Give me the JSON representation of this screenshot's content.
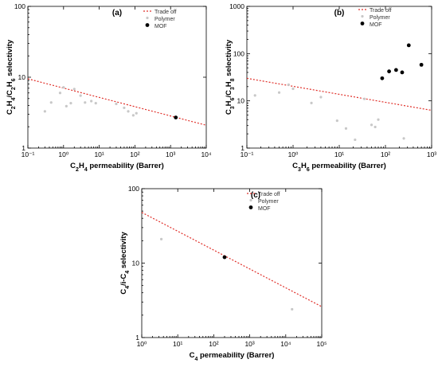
{
  "chart_data": [
    {
      "panel": "(a)",
      "type": "scatter",
      "xlabel_html": "C<sub>2</sub>H<sub>4</sub> permeability (Barrer)",
      "ylabel_html": "C<sub>2</sub>H<sub>4</sub>/C<sub>2</sub>H<sub>6</sub> selectivity",
      "xscale": "log",
      "yscale": "log",
      "xlim": [
        0.1,
        10000
      ],
      "ylim": [
        1,
        100
      ],
      "xticks": [
        "10⁻¹",
        "10⁰",
        "10¹",
        "10²",
        "10³",
        "10⁴"
      ],
      "yticks": [
        "1",
        "10",
        "100"
      ],
      "legend": {
        "position": "top-right",
        "entries": [
          "Trade off",
          "Polymer",
          "MOF"
        ]
      },
      "series": [
        {
          "name": "Trade off",
          "kind": "line",
          "color": "#e0302a",
          "points": [
            [
              0.1,
              9.5
            ],
            [
              10000,
              2.1
            ]
          ]
        },
        {
          "name": "Polymer",
          "kind": "scatter",
          "color": "#c8c8c8",
          "points": [
            [
              0.3,
              3.3
            ],
            [
              0.45,
              4.4
            ],
            [
              0.8,
              6.0
            ],
            [
              1.0,
              7.2
            ],
            [
              1.2,
              3.9
            ],
            [
              1.6,
              4.3
            ],
            [
              2.0,
              6.8
            ],
            [
              3.0,
              5.5
            ],
            [
              4.0,
              4.4
            ],
            [
              6.0,
              4.6
            ],
            [
              8.0,
              4.3
            ],
            [
              30,
              4.2
            ],
            [
              50,
              3.7
            ],
            [
              65,
              3.3
            ],
            [
              90,
              2.9
            ],
            [
              110,
              3.1
            ]
          ]
        },
        {
          "name": "MOF",
          "kind": "scatter",
          "color": "#000000",
          "points": [
            [
              1400,
              2.7
            ]
          ]
        }
      ]
    },
    {
      "panel": "(b)",
      "type": "scatter",
      "xlabel_html": "C<sub>3</sub>H<sub>6</sub> permeability (Barrer)",
      "ylabel_html": "C<sub>3</sub>H<sub>6</sub>/C<sub>3</sub>H<sub>8</sub> selectivity",
      "xscale": "log",
      "yscale": "log",
      "xlim": [
        0.1,
        1000
      ],
      "ylim": [
        1,
        1000
      ],
      "xticks": [
        "10⁻¹",
        "10⁰",
        "10¹",
        "10²",
        "10³"
      ],
      "yticks": [
        "1",
        "10",
        "100",
        "1000"
      ],
      "legend": {
        "position": "top-right",
        "entries": [
          "Trade off",
          "Polymer",
          "MOF"
        ]
      },
      "series": [
        {
          "name": "Trade off",
          "kind": "line",
          "color": "#e0302a",
          "points": [
            [
              0.1,
              30
            ],
            [
              1000,
              6.3
            ]
          ]
        },
        {
          "name": "Polymer",
          "kind": "scatter",
          "color": "#c8c8c8",
          "points": [
            [
              0.15,
              13
            ],
            [
              0.5,
              15
            ],
            [
              0.8,
              22
            ],
            [
              1.0,
              18
            ],
            [
              2.5,
              9
            ],
            [
              4.0,
              12
            ],
            [
              9.0,
              3.8
            ],
            [
              14,
              2.6
            ],
            [
              22,
              1.5
            ],
            [
              35,
              11
            ],
            [
              50,
              3.1
            ],
            [
              60,
              2.8
            ],
            [
              70,
              4.0
            ],
            [
              250,
              1.6
            ]
          ]
        },
        {
          "name": "MOF",
          "kind": "scatter",
          "color": "#000000",
          "points": [
            [
              85,
              30
            ],
            [
              120,
              42
            ],
            [
              170,
              45
            ],
            [
              230,
              40
            ],
            [
              320,
              150
            ],
            [
              600,
              58
            ]
          ]
        }
      ]
    },
    {
      "panel": "(c)",
      "type": "scatter",
      "xlabel_html": "C<sub>4</sub> permeability (Barrer)",
      "ylabel_html": "C<sub>4</sub>/i-C<sub>4</sub> selectivity",
      "xscale": "log",
      "yscale": "log",
      "xlim": [
        1,
        100000
      ],
      "ylim": [
        1,
        100
      ],
      "xticks": [
        "10⁰",
        "10¹",
        "10²",
        "10³",
        "10⁴",
        "10⁵"
      ],
      "yticks": [
        "1",
        "10",
        "100"
      ],
      "legend": {
        "position": "top-right",
        "entries": [
          "Trade off",
          "Polymer",
          "MOF"
        ]
      },
      "series": [
        {
          "name": "Trade off",
          "kind": "line",
          "color": "#e0302a",
          "points": [
            [
              1,
              48
            ],
            [
              100000,
              2.6
            ]
          ]
        },
        {
          "name": "Polymer",
          "kind": "scatter",
          "color": "#c8c8c8",
          "points": [
            [
              3.5,
              21
            ],
            [
              15000,
              2.4
            ]
          ]
        },
        {
          "name": "MOF",
          "kind": "scatter",
          "color": "#000000",
          "points": [
            [
              200,
              12
            ]
          ]
        }
      ]
    }
  ]
}
